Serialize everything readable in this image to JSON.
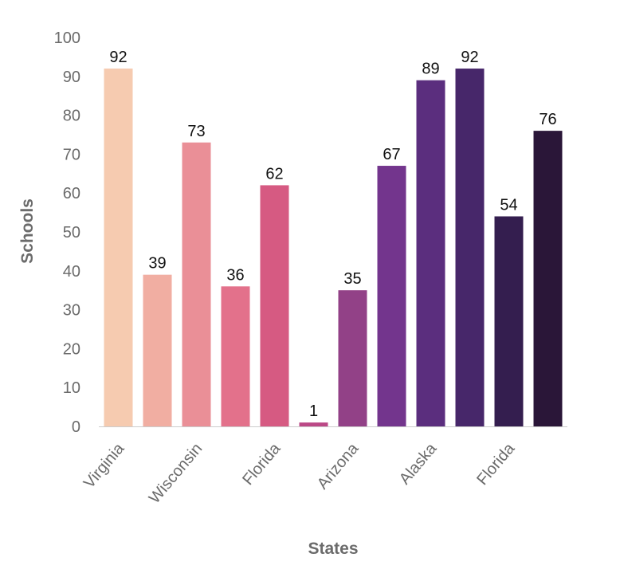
{
  "chart_data": {
    "type": "bar",
    "title": "",
    "xlabel": "States",
    "ylabel": "Schools",
    "ylim": [
      0,
      100
    ],
    "yticks": [
      0,
      10,
      20,
      30,
      40,
      50,
      60,
      70,
      80,
      90,
      100
    ],
    "grid": false,
    "categories": [
      "Virginia",
      "",
      "Wisconsin",
      "",
      "Florida",
      "",
      "Arizona",
      "",
      "Alaska",
      "",
      "Florida",
      ""
    ],
    "values": [
      92,
      39,
      73,
      36,
      62,
      1,
      35,
      67,
      89,
      92,
      54,
      76
    ],
    "colors": [
      "#f6cbb0",
      "#f1aea2",
      "#ea8f97",
      "#e3718b",
      "#d65a82",
      "#bb4886",
      "#924187",
      "#73358d",
      "#5b2e7e",
      "#47276a",
      "#341e4f",
      "#2a1638"
    ]
  }
}
